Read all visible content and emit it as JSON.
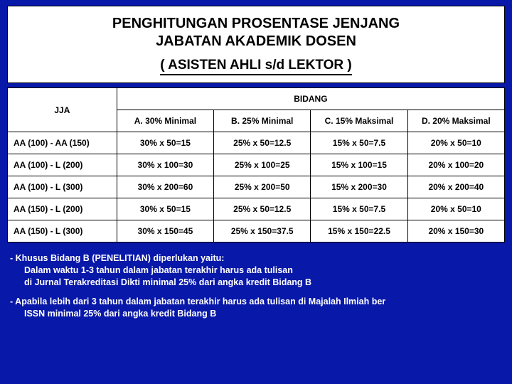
{
  "header": {
    "title_line1": "PENGHITUNGAN PROSENTASE JENJANG",
    "title_line2": "JABATAN AKADEMIK DOSEN",
    "subtitle": "( ASISTEN AHLI s/d LEKTOR )"
  },
  "table": {
    "jja_header": "JJA",
    "bidang_header": "BIDANG",
    "columns": [
      "A. 30% Minimal",
      "B. 25% Minimal",
      "C. 15% Maksimal",
      "D. 20% Maksimal"
    ],
    "rows": [
      {
        "label": "AA (100) - AA (150)",
        "cells": [
          "30% x 50=15",
          "25% x 50=12.5",
          "15% x 50=7.5",
          "20% x 50=10"
        ]
      },
      {
        "label": "AA (100) - L (200)",
        "cells": [
          "30% x 100=30",
          "25% x 100=25",
          "15% x 100=15",
          "20% x 100=20"
        ]
      },
      {
        "label": "AA (100) - L (300)",
        "cells": [
          "30% x 200=60",
          "25% x 200=50",
          "15% x 200=30",
          "20% x 200=40"
        ]
      },
      {
        "label": "AA (150) - L (200)",
        "cells": [
          "30% x 50=15",
          "25% x 50=12.5",
          "15% x 50=7.5",
          "20% x 50=10"
        ]
      },
      {
        "label": "AA (150) - L (300)",
        "cells": [
          "30% x 150=45",
          "25% x 150=37.5",
          "15% x 150=22.5",
          "20% x 150=30"
        ]
      }
    ]
  },
  "notes": {
    "n1_line1": "- Khusus Bidang B (PENELITIAN) diperlukan yaitu:",
    "n1_line2": "Dalam waktu 1-3 tahun dalam jabatan terakhir harus ada tulisan",
    "n1_line3": "di Jurnal Terakreditasi Dikti  minimal 25% dari angka kredit Bidang B",
    "n2_line1": "- Apabila lebih dari 3 tahun dalam jabatan terakhir harus ada tulisan di Majalah Ilmiah ber",
    "n2_line2": "ISSN  minimal 25% dari angka kredit Bidang B"
  },
  "colors": {
    "background": "#0818a8",
    "panel": "#ffffff",
    "text_dark": "#000000",
    "text_light": "#ffffff"
  }
}
